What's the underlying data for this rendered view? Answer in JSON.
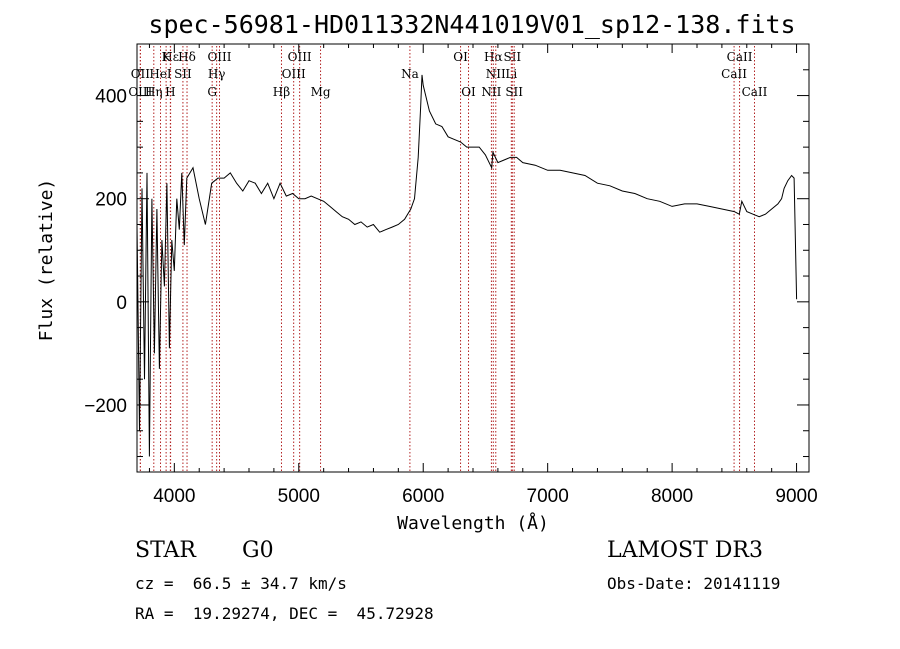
{
  "chart_data": {
    "type": "line",
    "title": "spec-56981-HD011332N441019V01_sp12-138.fits",
    "xlabel": "Wavelength (Å)",
    "ylabel": "Flux (relative)",
    "xlim": [
      3700,
      9100
    ],
    "ylim": [
      -330,
      500
    ],
    "xticks": [
      4000,
      5000,
      6000,
      7000,
      8000,
      9000
    ],
    "xtick_labels": [
      "4000",
      "5000",
      "6000",
      "7000",
      "8000",
      "9000"
    ],
    "yticks": [
      -200,
      0,
      200,
      400
    ],
    "ytick_labels": [
      "−200",
      "0",
      "200",
      "400"
    ],
    "series": [
      {
        "name": "flux",
        "x": [
          3700,
          3720,
          3740,
          3760,
          3780,
          3800,
          3820,
          3840,
          3860,
          3880,
          3900,
          3920,
          3940,
          3960,
          3980,
          4000,
          4020,
          4040,
          4060,
          4080,
          4100,
          4150,
          4200,
          4250,
          4300,
          4350,
          4400,
          4450,
          4500,
          4550,
          4600,
          4650,
          4700,
          4750,
          4800,
          4850,
          4900,
          4950,
          5000,
          5050,
          5100,
          5150,
          5200,
          5250,
          5300,
          5350,
          5400,
          5450,
          5500,
          5550,
          5600,
          5650,
          5700,
          5750,
          5800,
          5850,
          5900,
          5930,
          5960,
          5980,
          5990,
          6000,
          6020,
          6050,
          6100,
          6150,
          6200,
          6250,
          6300,
          6350,
          6400,
          6450,
          6500,
          6550,
          6560,
          6580,
          6600,
          6650,
          6700,
          6750,
          6800,
          6900,
          7000,
          7100,
          7200,
          7300,
          7400,
          7500,
          7600,
          7700,
          7800,
          7900,
          8000,
          8100,
          8200,
          8300,
          8400,
          8500,
          8540,
          8560,
          8600,
          8650,
          8700,
          8750,
          8800,
          8850,
          8880,
          8900,
          8930,
          8960,
          8980,
          9000
        ],
        "y": [
          150,
          -250,
          220,
          -150,
          250,
          -300,
          200,
          -100,
          180,
          -130,
          120,
          30,
          230,
          -90,
          120,
          60,
          200,
          140,
          250,
          110,
          240,
          260,
          200,
          150,
          230,
          240,
          240,
          250,
          230,
          215,
          235,
          230,
          210,
          230,
          200,
          230,
          205,
          210,
          200,
          200,
          205,
          200,
          195,
          185,
          175,
          165,
          160,
          150,
          155,
          145,
          150,
          135,
          140,
          145,
          150,
          160,
          180,
          200,
          280,
          380,
          440,
          420,
          400,
          370,
          345,
          340,
          320,
          315,
          310,
          300,
          300,
          300,
          285,
          260,
          290,
          280,
          270,
          275,
          280,
          280,
          270,
          265,
          255,
          255,
          250,
          245,
          230,
          225,
          215,
          210,
          200,
          195,
          185,
          190,
          190,
          185,
          180,
          175,
          170,
          195,
          175,
          170,
          165,
          170,
          180,
          190,
          200,
          220,
          235,
          245,
          240,
          5
        ]
      }
    ],
    "lines": [
      {
        "name": "Hε",
        "x": 3970,
        "row": 0
      },
      {
        "name": "K",
        "x": 3934,
        "row": 0
      },
      {
        "name": "Hδ",
        "x": 4102,
        "row": 0
      },
      {
        "name": "OIII",
        "x": 4363,
        "row": 0
      },
      {
        "name": "OIII",
        "x": 5007,
        "row": 0
      },
      {
        "name": "OI",
        "x": 6300,
        "row": 0
      },
      {
        "name": "Hα",
        "x": 6563,
        "row": 0
      },
      {
        "name": "SII",
        "x": 6716,
        "row": 0
      },
      {
        "name": "CaII",
        "x": 8542,
        "row": 0
      },
      {
        "name": "OII",
        "x": 3727,
        "row": 1
      },
      {
        "name": "HeI",
        "x": 3889,
        "row": 1
      },
      {
        "name": "SII",
        "x": 4069,
        "row": 1
      },
      {
        "name": "Hγ",
        "x": 4340,
        "row": 1
      },
      {
        "name": "OIII",
        "x": 4959,
        "row": 1
      },
      {
        "name": "Na",
        "x": 5893,
        "row": 1
      },
      {
        "name": "NII",
        "x": 6583,
        "row": 1
      },
      {
        "name": "Li",
        "x": 6708,
        "row": 1
      },
      {
        "name": "CaII",
        "x": 8498,
        "row": 1
      },
      {
        "name": "OIII",
        "x": 3727,
        "row": 2
      },
      {
        "name": "Hη",
        "x": 3835,
        "row": 2
      },
      {
        "name": "H",
        "x": 3968,
        "row": 2
      },
      {
        "name": "G",
        "x": 4304,
        "row": 2
      },
      {
        "name": "Hβ",
        "x": 4861,
        "row": 2
      },
      {
        "name": "Mg",
        "x": 5175,
        "row": 2
      },
      {
        "name": "OI",
        "x": 6364,
        "row": 2
      },
      {
        "name": "NII",
        "x": 6548,
        "row": 2
      },
      {
        "name": "SII",
        "x": 6731,
        "row": 2
      },
      {
        "name": "CaII",
        "x": 8662,
        "row": 2
      }
    ],
    "line_color": "#b22222"
  },
  "info": {
    "object_class": "STAR",
    "subclass": "G0",
    "survey": "LAMOST DR3",
    "velocity": "cz =  66.5 ± 34.7 km/s",
    "obs_date": "Obs-Date: 20141119",
    "coords": "RA =  19.29274, DEC =  45.72928"
  }
}
